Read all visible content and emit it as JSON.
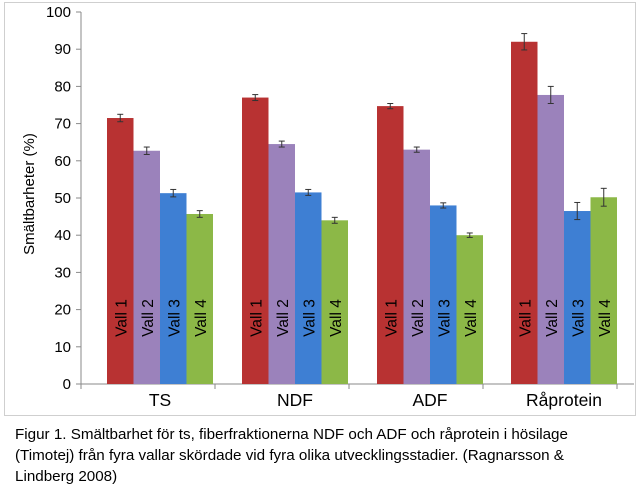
{
  "chart_data": {
    "type": "bar",
    "title": "",
    "xlabel": "",
    "ylabel": "Smältbarheter (%)",
    "ylim": [
      0,
      100
    ],
    "yticks": [
      0,
      10,
      20,
      30,
      40,
      50,
      60,
      70,
      80,
      90,
      100
    ],
    "grid": false,
    "legend": "none",
    "categories": [
      "TS",
      "NDF",
      "ADF",
      "Råprotein"
    ],
    "series": [
      {
        "name": "Vall 1",
        "color": "#b83232",
        "values": [
          71.5,
          77.0,
          74.7,
          92.0
        ],
        "errors": [
          1.0,
          0.8,
          0.7,
          2.2
        ]
      },
      {
        "name": "Vall 2",
        "color": "#9b82bb",
        "values": [
          62.7,
          64.5,
          63.0,
          77.7
        ],
        "errors": [
          1.0,
          0.8,
          0.7,
          2.3
        ]
      },
      {
        "name": "Vall 3",
        "color": "#3e7fd3",
        "values": [
          51.3,
          51.5,
          48.0,
          46.5
        ],
        "errors": [
          1.0,
          0.8,
          0.7,
          2.3
        ]
      },
      {
        "name": "Vall 4",
        "color": "#8cb847",
        "values": [
          45.7,
          44.0,
          40.0,
          50.2
        ],
        "errors": [
          0.9,
          0.8,
          0.6,
          2.4
        ]
      }
    ]
  },
  "caption": {
    "line1": "Figur 1. Smältbarhet för ts, fiberfraktionerna NDF och ADF och råprotein i hösilage",
    "line2": "(Timotej) från fyra vallar skördade vid fyra olika utvecklingsstadier. (Ragnarsson &",
    "line3": "Lindberg 2008)"
  }
}
